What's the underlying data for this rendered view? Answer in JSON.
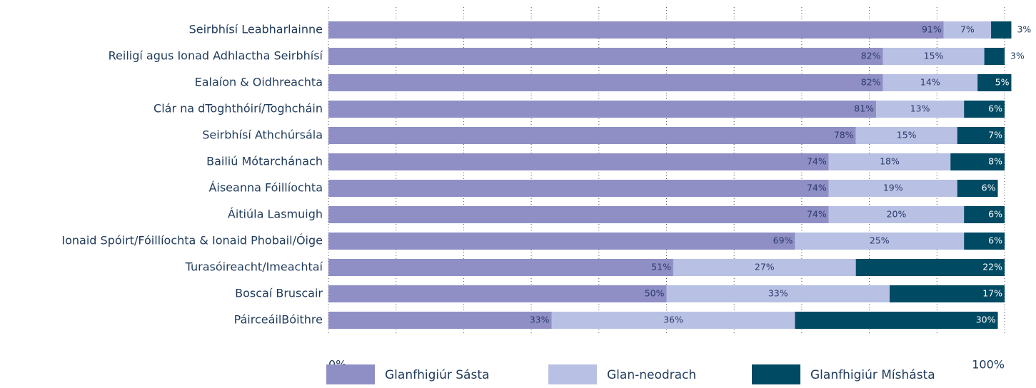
{
  "chart_data": {
    "type": "stacked-bar-horizontal",
    "categories": [
      "Seirbhísí Leabharlainne",
      "Reiligí agus Ionad Adhlactha Seirbhísí",
      "Ealaíon & Oidhreachta",
      "Clár na dToghthóirí/Toghcháin",
      "Seirbhísí Athchúrsála",
      "Bailiú Mótarchánach",
      "Áiseanna Fóillíochta",
      "Áitiúla Lasmuigh",
      "Ionaid Spóirt/Fóillíochta & Ionaid Phobail/Óige",
      "Turasóireacht/Imeachtaí",
      "Boscaí Bruscair",
      "PáirceáilBóithre"
    ],
    "series": [
      {
        "name": "Glanfhigiúr Sásta",
        "color": "#8f8fc6",
        "values": [
          91,
          82,
          82,
          81,
          78,
          74,
          74,
          74,
          69,
          51,
          50,
          33
        ],
        "value_labels": [
          "91%",
          "82%",
          "82%",
          "81%",
          "78%",
          "74%",
          "74%",
          "74%",
          "69%",
          "51%",
          "50%",
          "33%"
        ]
      },
      {
        "name": "Glan-neodrach",
        "color": "#b8c1e4",
        "values": [
          7,
          15,
          14,
          13,
          15,
          18,
          19,
          20,
          25,
          27,
          33,
          36
        ],
        "value_labels": [
          "7%",
          "15%",
          "14%",
          "13%",
          "15%",
          "18%",
          "19%",
          "20%",
          "25%",
          "27%",
          "33%",
          "36%"
        ]
      },
      {
        "name": "Glanfhigiúr Míshásta",
        "color": "#004a63",
        "values": [
          3,
          3,
          5,
          6,
          7,
          8,
          6,
          6,
          6,
          22,
          17,
          30
        ],
        "value_labels": [
          "3%",
          "3%",
          "5%",
          "6%",
          "7%",
          "8%",
          "6%",
          "6%",
          "6%",
          "22%",
          "17%",
          "30%"
        ]
      }
    ],
    "xlim": [
      0,
      100
    ],
    "xticks": [
      {
        "value": 0,
        "label": "0%"
      },
      {
        "value": 10,
        "label": null
      },
      {
        "value": 20,
        "label": null
      },
      {
        "value": 30,
        "label": null
      },
      {
        "value": 40,
        "label": null
      },
      {
        "value": 50,
        "label": null
      },
      {
        "value": 60,
        "label": null
      },
      {
        "value": 70,
        "label": null
      },
      {
        "value": 80,
        "label": null
      },
      {
        "value": 90,
        "label": null
      },
      {
        "value": {
          "value": 100
        },
        "label": "100%"
      }
    ],
    "grid": true,
    "legend": "bottom"
  }
}
